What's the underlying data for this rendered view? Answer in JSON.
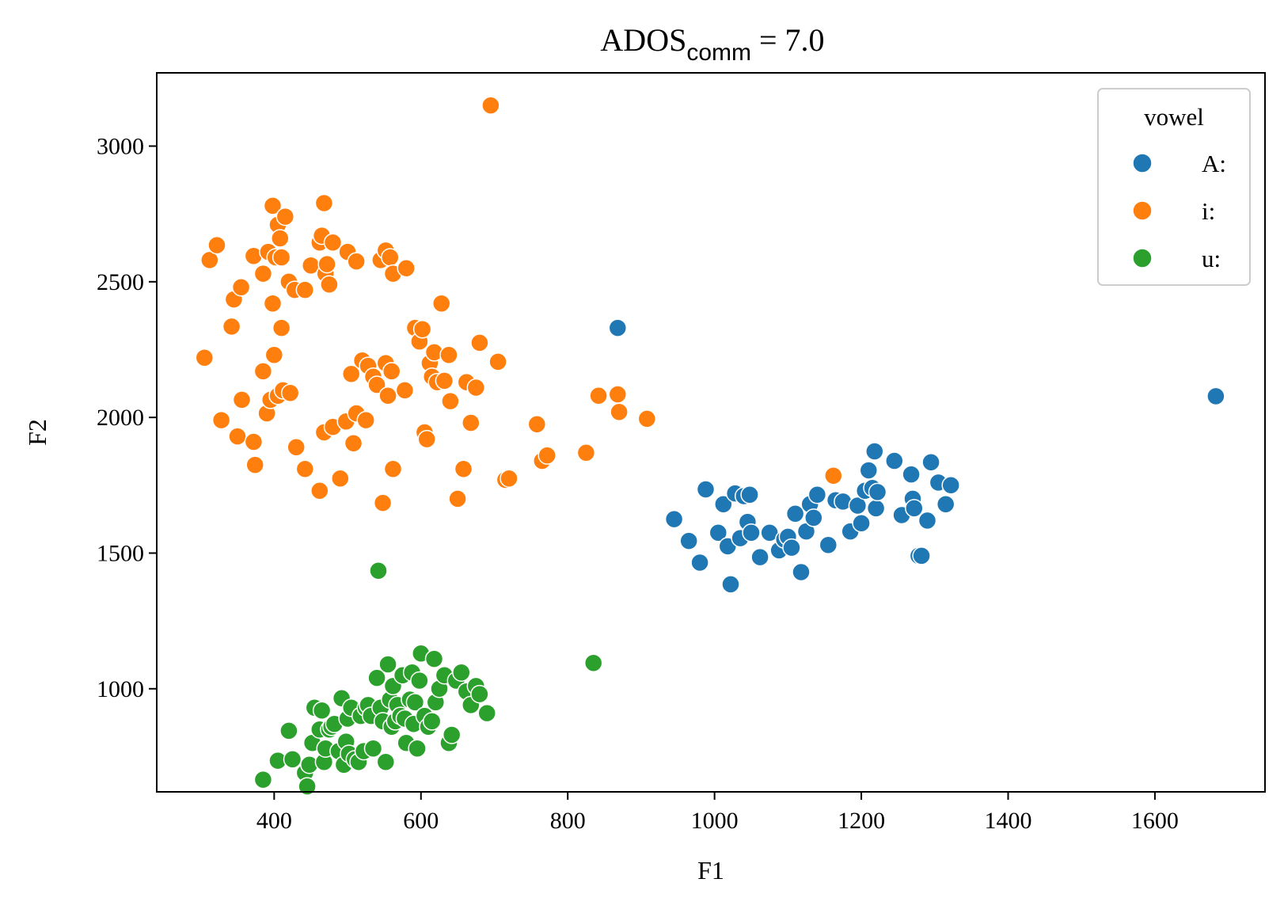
{
  "chart_data": {
    "type": "scatter",
    "title": {
      "main": "ADOS",
      "subscript": "comm",
      "suffix": " = 7.0"
    },
    "xlabel": "F1",
    "ylabel": "F2",
    "xlim": [
      240,
      1750
    ],
    "ylim": [
      620,
      3270
    ],
    "xticks": [
      400,
      600,
      800,
      1000,
      1200,
      1400,
      1600
    ],
    "yticks": [
      1000,
      1500,
      2000,
      2500,
      3000
    ],
    "legend": {
      "title": "vowel",
      "position": "top-right"
    },
    "grid": false,
    "series": [
      {
        "name": "A:",
        "color": "#1f77b4",
        "points": [
          [
            868,
            2330
          ],
          [
            1683,
            2078
          ],
          [
            945,
            1625
          ],
          [
            965,
            1545
          ],
          [
            980,
            1465
          ],
          [
            988,
            1735
          ],
          [
            1005,
            1575
          ],
          [
            1012,
            1680
          ],
          [
            1018,
            1525
          ],
          [
            1022,
            1385
          ],
          [
            1028,
            1720
          ],
          [
            1035,
            1555
          ],
          [
            1040,
            1710
          ],
          [
            1045,
            1615
          ],
          [
            1048,
            1715
          ],
          [
            1050,
            1575
          ],
          [
            1062,
            1485
          ],
          [
            1075,
            1575
          ],
          [
            1088,
            1510
          ],
          [
            1095,
            1550
          ],
          [
            1100,
            1560
          ],
          [
            1105,
            1520
          ],
          [
            1110,
            1645
          ],
          [
            1118,
            1430
          ],
          [
            1125,
            1580
          ],
          [
            1130,
            1680
          ],
          [
            1135,
            1630
          ],
          [
            1140,
            1715
          ],
          [
            1155,
            1530
          ],
          [
            1165,
            1695
          ],
          [
            1175,
            1690
          ],
          [
            1185,
            1580
          ],
          [
            1195,
            1675
          ],
          [
            1200,
            1610
          ],
          [
            1205,
            1730
          ],
          [
            1210,
            1805
          ],
          [
            1215,
            1740
          ],
          [
            1218,
            1875
          ],
          [
            1220,
            1665
          ],
          [
            1222,
            1725
          ],
          [
            1245,
            1840
          ],
          [
            1255,
            1640
          ],
          [
            1268,
            1790
          ],
          [
            1270,
            1700
          ],
          [
            1272,
            1665
          ],
          [
            1278,
            1490
          ],
          [
            1282,
            1490
          ],
          [
            1290,
            1620
          ],
          [
            1295,
            1835
          ],
          [
            1305,
            1760
          ],
          [
            1315,
            1680
          ],
          [
            1322,
            1750
          ]
        ]
      },
      {
        "name": "i:",
        "color": "#ff7f0e",
        "points": [
          [
            695,
            3150
          ],
          [
            312,
            2580
          ],
          [
            322,
            2635
          ],
          [
            345,
            2435
          ],
          [
            355,
            2480
          ],
          [
            372,
            2595
          ],
          [
            385,
            2530
          ],
          [
            392,
            2610
          ],
          [
            398,
            2780
          ],
          [
            402,
            2590
          ],
          [
            405,
            2710
          ],
          [
            408,
            2660
          ],
          [
            410,
            2590
          ],
          [
            415,
            2740
          ],
          [
            420,
            2500
          ],
          [
            428,
            2470
          ],
          [
            442,
            2470
          ],
          [
            450,
            2560
          ],
          [
            462,
            2645
          ],
          [
            465,
            2670
          ],
          [
            468,
            2790
          ],
          [
            470,
            2530
          ],
          [
            472,
            2565
          ],
          [
            475,
            2490
          ],
          [
            480,
            2645
          ],
          [
            500,
            2610
          ],
          [
            512,
            2575
          ],
          [
            545,
            2580
          ],
          [
            552,
            2615
          ],
          [
            558,
            2590
          ],
          [
            562,
            2530
          ],
          [
            580,
            2550
          ],
          [
            305,
            2220
          ],
          [
            328,
            1990
          ],
          [
            342,
            2335
          ],
          [
            350,
            1930
          ],
          [
            356,
            2065
          ],
          [
            372,
            1910
          ],
          [
            374,
            1825
          ],
          [
            385,
            2170
          ],
          [
            390,
            2015
          ],
          [
            395,
            2065
          ],
          [
            398,
            2420
          ],
          [
            400,
            2230
          ],
          [
            405,
            2080
          ],
          [
            410,
            2330
          ],
          [
            412,
            2100
          ],
          [
            422,
            2090
          ],
          [
            430,
            1890
          ],
          [
            442,
            1810
          ],
          [
            462,
            1730
          ],
          [
            468,
            1945
          ],
          [
            480,
            1965
          ],
          [
            490,
            1775
          ],
          [
            498,
            1985
          ],
          [
            505,
            2160
          ],
          [
            508,
            1905
          ],
          [
            512,
            2015
          ],
          [
            520,
            2210
          ],
          [
            525,
            1990
          ],
          [
            528,
            2190
          ],
          [
            535,
            2150
          ],
          [
            540,
            2120
          ],
          [
            548,
            1685
          ],
          [
            552,
            2200
          ],
          [
            555,
            2080
          ],
          [
            560,
            2170
          ],
          [
            562,
            1810
          ],
          [
            578,
            2100
          ],
          [
            592,
            2330
          ],
          [
            598,
            2280
          ],
          [
            602,
            2325
          ],
          [
            605,
            1945
          ],
          [
            608,
            1920
          ],
          [
            612,
            2200
          ],
          [
            615,
            2150
          ],
          [
            618,
            2240
          ],
          [
            622,
            2130
          ],
          [
            628,
            2420
          ],
          [
            632,
            2135
          ],
          [
            638,
            2230
          ],
          [
            640,
            2060
          ],
          [
            650,
            1700
          ],
          [
            658,
            1810
          ],
          [
            662,
            2130
          ],
          [
            668,
            1980
          ],
          [
            675,
            2110
          ],
          [
            680,
            2275
          ],
          [
            705,
            2205
          ],
          [
            715,
            1770
          ],
          [
            720,
            1775
          ],
          [
            758,
            1975
          ],
          [
            765,
            1840
          ],
          [
            772,
            1860
          ],
          [
            825,
            1870
          ],
          [
            842,
            2080
          ],
          [
            868,
            2085
          ],
          [
            870,
            2020
          ],
          [
            908,
            1995
          ],
          [
            1162,
            1785
          ]
        ]
      },
      {
        "name": "u:",
        "color": "#2ca02c",
        "points": [
          [
            542,
            1435
          ],
          [
            835,
            1095
          ],
          [
            385,
            665
          ],
          [
            405,
            735
          ],
          [
            420,
            845
          ],
          [
            425,
            740
          ],
          [
            442,
            690
          ],
          [
            445,
            640
          ],
          [
            448,
            720
          ],
          [
            452,
            800
          ],
          [
            455,
            930
          ],
          [
            462,
            850
          ],
          [
            465,
            920
          ],
          [
            468,
            730
          ],
          [
            470,
            780
          ],
          [
            475,
            850
          ],
          [
            478,
            860
          ],
          [
            482,
            870
          ],
          [
            488,
            770
          ],
          [
            492,
            965
          ],
          [
            495,
            720
          ],
          [
            498,
            805
          ],
          [
            500,
            890
          ],
          [
            502,
            760
          ],
          [
            505,
            930
          ],
          [
            510,
            740
          ],
          [
            515,
            730
          ],
          [
            518,
            900
          ],
          [
            522,
            770
          ],
          [
            525,
            930
          ],
          [
            528,
            940
          ],
          [
            532,
            900
          ],
          [
            535,
            780
          ],
          [
            540,
            1040
          ],
          [
            545,
            930
          ],
          [
            548,
            880
          ],
          [
            552,
            730
          ],
          [
            555,
            1090
          ],
          [
            558,
            960
          ],
          [
            560,
            860
          ],
          [
            562,
            1010
          ],
          [
            565,
            880
          ],
          [
            568,
            940
          ],
          [
            572,
            900
          ],
          [
            575,
            1050
          ],
          [
            578,
            890
          ],
          [
            580,
            800
          ],
          [
            585,
            960
          ],
          [
            588,
            1060
          ],
          [
            590,
            870
          ],
          [
            592,
            950
          ],
          [
            595,
            780
          ],
          [
            598,
            1030
          ],
          [
            600,
            1130
          ],
          [
            605,
            900
          ],
          [
            610,
            860
          ],
          [
            615,
            880
          ],
          [
            618,
            1110
          ],
          [
            620,
            950
          ],
          [
            625,
            1000
          ],
          [
            632,
            1050
          ],
          [
            638,
            800
          ],
          [
            642,
            830
          ],
          [
            648,
            1030
          ],
          [
            655,
            1060
          ],
          [
            662,
            990
          ],
          [
            668,
            940
          ],
          [
            675,
            1010
          ],
          [
            680,
            980
          ],
          [
            690,
            910
          ]
        ]
      }
    ]
  }
}
